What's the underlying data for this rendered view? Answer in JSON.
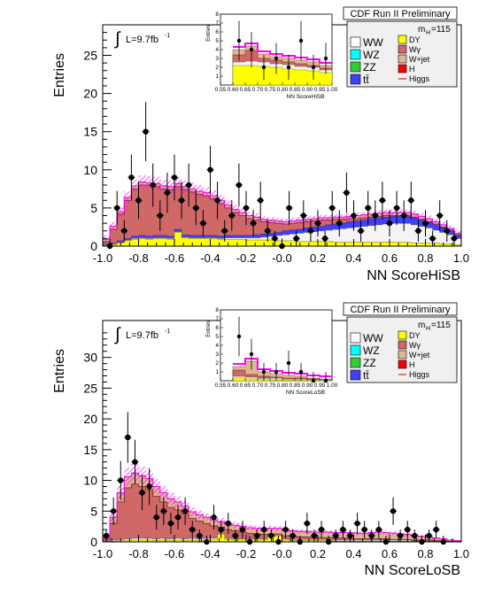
{
  "chart_data": [
    {
      "type": "bar",
      "header": "CDF Run II Preliminary",
      "luminosity_text": "L=9.7fb",
      "luminosity_sup": "-1",
      "mass_label": "m",
      "mass_sub": "H",
      "mass_value": "=115",
      "ylabel": "Entries",
      "xlabel": "NN ScoreHiSB",
      "xlim": [
        -1.0,
        1.0
      ],
      "ylim": [
        0,
        29
      ],
      "x_ticks": [
        "-1.0",
        "-0.8",
        "-0.6",
        "-0.4",
        "-0.2",
        "-0.0",
        "0.2",
        "0.4",
        "0.6",
        "0.8",
        "1.0"
      ],
      "y_ticks": [
        0,
        5,
        10,
        15,
        20,
        25
      ],
      "stack_bins": [
        -1.0,
        -0.96,
        -0.92,
        -0.88,
        -0.84,
        -0.8,
        -0.76,
        -0.72,
        -0.68,
        -0.64,
        -0.6,
        -0.56,
        -0.52,
        -0.48,
        -0.44,
        -0.4,
        -0.36,
        -0.32,
        -0.28,
        -0.24,
        -0.2,
        -0.16,
        -0.12,
        -0.08,
        -0.04,
        0.0,
        0.04,
        0.08,
        0.12,
        0.16,
        0.2,
        0.24,
        0.28,
        0.32,
        0.36,
        0.4,
        0.44,
        0.48,
        0.52,
        0.56,
        0.6,
        0.64,
        0.68,
        0.72,
        0.76,
        0.8,
        0.84,
        0.88,
        0.92,
        0.96,
        1.0
      ],
      "stack": {
        "yellow": [
          0.1,
          0.2,
          0.4,
          0.7,
          0.9,
          1.0,
          0.9,
          1.0,
          1.0,
          0.9,
          1.8,
          1.1,
          1.0,
          1.0,
          1.0,
          1.0,
          0.9,
          0.9,
          0.9,
          0.9,
          0.8,
          0.8,
          0.8,
          0.8,
          0.7,
          0.7,
          0.7,
          0.6,
          0.6,
          0.6,
          0.6,
          0.6,
          0.5,
          0.5,
          0.5,
          0.5,
          0.5,
          0.5,
          0.5,
          0.5,
          0.5,
          0.5,
          0.5,
          0.4,
          0.4,
          0.4,
          0.4,
          0.3,
          0.3,
          0.2
        ],
        "ww_top": [
          0.2,
          0.3,
          0.5,
          0.8,
          1.0,
          1.1,
          1.0,
          1.1,
          1.1,
          1.0,
          1.9,
          1.2,
          1.1,
          1.1,
          1.1,
          1.1,
          1.0,
          1.1,
          1.1,
          1.1,
          1.1,
          1.1,
          1.2,
          1.3,
          1.4,
          1.5,
          1.6,
          1.7,
          1.8,
          1.9,
          2.0,
          2.1,
          2.2,
          2.3,
          2.4,
          2.5,
          2.6,
          2.7,
          2.8,
          2.9,
          3.0,
          3.0,
          3.0,
          2.8,
          2.6,
          2.4,
          2.1,
          1.8,
          1.5,
          1.0
        ],
        "other_top": [
          0.3,
          0.4,
          0.7,
          1.0,
          1.3,
          1.4,
          1.3,
          1.4,
          1.4,
          1.3,
          2.2,
          1.5,
          1.4,
          1.4,
          1.4,
          1.4,
          1.3,
          1.4,
          1.4,
          1.4,
          1.4,
          1.5,
          1.6,
          1.7,
          1.8,
          2.0,
          2.1,
          2.2,
          2.4,
          2.5,
          2.6,
          2.8,
          2.9,
          3.0,
          3.2,
          3.3,
          3.4,
          3.6,
          3.7,
          3.8,
          3.9,
          3.9,
          3.9,
          3.7,
          3.4,
          3.1,
          2.8,
          2.4,
          2.0,
          1.4
        ],
        "wgamma_top": [
          0.6,
          2.2,
          4.2,
          6.0,
          7.5,
          8.0,
          8.0,
          7.8,
          7.5,
          7.4,
          7.8,
          7.4,
          7.1,
          6.8,
          6.6,
          6.2,
          5.6,
          5.0,
          4.4,
          4.0,
          3.6,
          3.4,
          3.2,
          3.1,
          3.0,
          2.9,
          3.0,
          3.1,
          3.2,
          3.3,
          3.4,
          3.4,
          3.5,
          3.5,
          3.6,
          3.6,
          3.7,
          3.8,
          3.9,
          4.0,
          4.0,
          4.0,
          4.0,
          3.8,
          3.5,
          3.2,
          2.9,
          2.5,
          2.1,
          1.5
        ],
        "wjet_top": [
          0.9,
          2.6,
          4.5,
          6.4,
          7.9,
          8.4,
          8.3,
          8.2,
          7.9,
          7.8,
          8.2,
          7.8,
          7.5,
          7.2,
          7.0,
          6.6,
          6.0,
          5.4,
          4.8,
          4.4,
          4.0,
          3.8,
          3.5,
          3.4,
          3.3,
          3.2,
          3.3,
          3.4,
          3.5,
          3.6,
          3.7,
          3.7,
          3.8,
          3.8,
          3.9,
          4.0,
          4.1,
          4.2,
          4.3,
          4.4,
          4.4,
          4.4,
          4.4,
          4.2,
          3.9,
          3.6,
          3.2,
          2.8,
          2.3,
          1.7
        ],
        "band": [
          0.5,
          0.6,
          0.7,
          0.8,
          0.8,
          0.9,
          0.9,
          0.9,
          0.8,
          0.8,
          0.9,
          0.8,
          0.8,
          0.8,
          0.7,
          0.7,
          0.7,
          0.6,
          0.6,
          0.5,
          0.5,
          0.5,
          0.4,
          0.4,
          0.4,
          0.4,
          0.4,
          0.4,
          0.4,
          0.4,
          0.4,
          0.4,
          0.4,
          0.4,
          0.4,
          0.4,
          0.4,
          0.4,
          0.4,
          0.4,
          0.4,
          0.4,
          0.4,
          0.4,
          0.4,
          0.4,
          0.4,
          0.4,
          0.4,
          0.3
        ]
      },
      "points": {
        "x": [
          -0.96,
          -0.92,
          -0.88,
          -0.84,
          -0.8,
          -0.76,
          -0.72,
          -0.68,
          -0.64,
          -0.6,
          -0.56,
          -0.52,
          -0.48,
          -0.44,
          -0.4,
          -0.36,
          -0.32,
          -0.28,
          -0.24,
          -0.2,
          -0.16,
          -0.12,
          -0.08,
          -0.04,
          0.0,
          0.04,
          0.08,
          0.12,
          0.16,
          0.2,
          0.24,
          0.28,
          0.32,
          0.36,
          0.4,
          0.44,
          0.48,
          0.52,
          0.56,
          0.6,
          0.64,
          0.68,
          0.72,
          0.76,
          0.8,
          0.84,
          0.88,
          0.92,
          0.96
        ],
        "y": [
          0,
          5,
          2,
          9,
          6,
          15,
          8,
          4,
          7,
          9,
          6,
          8,
          5,
          3,
          10,
          6,
          2,
          4,
          8,
          5,
          3,
          6,
          2,
          1,
          0,
          5,
          1,
          4,
          2,
          3,
          1,
          5,
          3,
          7,
          4,
          2,
          5,
          4,
          6,
          3,
          5,
          4,
          6,
          2,
          3,
          1,
          4,
          2,
          1
        ]
      },
      "inset": {
        "ylabel": "Entries",
        "xlabel": "NN ScoreHiSB",
        "xlim": [
          0.55,
          1.0
        ],
        "ylim": [
          0,
          8
        ],
        "x_ticks": [
          "0.55",
          "0.60",
          "0.65",
          "0.70",
          "0.75",
          "0.80",
          "0.85",
          "0.90",
          "0.95",
          "1.00"
        ],
        "y_ticks": [
          "1",
          "2",
          "3",
          "4",
          "5",
          "6",
          "7",
          "8"
        ],
        "bins": [
          0.6,
          0.65,
          0.7,
          0.75,
          0.8,
          0.85,
          0.9,
          0.95,
          1.0
        ],
        "yellow": [
          2.2,
          2.2,
          2.1,
          2.0,
          1.8,
          1.7,
          1.6,
          1.4
        ],
        "ww_top": [
          2.6,
          2.7,
          2.6,
          2.4,
          2.3,
          2.1,
          2.0,
          1.7
        ],
        "wgamma_top": [
          3.4,
          3.9,
          3.0,
          2.8,
          2.6,
          2.4,
          2.2,
          1.9
        ],
        "wjet_top": [
          4.0,
          4.4,
          3.5,
          3.2,
          3.0,
          2.8,
          2.6,
          2.2
        ],
        "pts_x": [
          0.625,
          0.675,
          0.725,
          0.775,
          0.825,
          0.875,
          0.925,
          0.975
        ],
        "pts_y": [
          5,
          4,
          2,
          3,
          2,
          5,
          2,
          3
        ]
      },
      "legend": [
        {
          "label": "WW",
          "color": "#ffffff"
        },
        {
          "label": "WZ",
          "color": "#00ffff"
        },
        {
          "label": "ZZ",
          "color": "#33cc33"
        },
        {
          "label": "tt̄",
          "color": "#4040ff"
        },
        {
          "label": "DY",
          "color": "#ffff00"
        },
        {
          "label": "Wγ",
          "color": "#d06868"
        },
        {
          "label": "W+jet",
          "color": "#e0b890"
        },
        {
          "label": "H",
          "color": "#ff0000"
        },
        {
          "label": "Higgs",
          "color": "#cc0000"
        }
      ]
    },
    {
      "type": "bar",
      "header": "CDF Run II Preliminary",
      "luminosity_text": "L=9.7fb",
      "luminosity_sup": "-1",
      "mass_label": "m",
      "mass_sub": "H",
      "mass_value": "=115",
      "ylabel": "Entries",
      "xlabel": "NN ScoreLoSB",
      "xlim": [
        -1.0,
        1.0
      ],
      "ylim": [
        0,
        36
      ],
      "x_ticks": [
        "-1.0",
        "-0.8",
        "-0.6",
        "-0.4",
        "-0.2",
        "-0.0",
        "0.2",
        "0.4",
        "0.6",
        "0.8",
        "1.0"
      ],
      "y_ticks": [
        0,
        5,
        10,
        15,
        20,
        25,
        30
      ],
      "stack_bins": [
        -1.0,
        -0.96,
        -0.92,
        -0.88,
        -0.84,
        -0.8,
        -0.76,
        -0.72,
        -0.68,
        -0.64,
        -0.6,
        -0.56,
        -0.52,
        -0.48,
        -0.44,
        -0.4,
        -0.36,
        -0.32,
        -0.28,
        -0.24,
        -0.2,
        -0.16,
        -0.12,
        -0.08,
        -0.04,
        0.0,
        0.04,
        0.08,
        0.12,
        0.16,
        0.2,
        0.24,
        0.28,
        0.32,
        0.36,
        0.4,
        0.44,
        0.48,
        0.52,
        0.56,
        0.6,
        0.64,
        0.68,
        0.72,
        0.76,
        0.8,
        0.84,
        0.88,
        0.92,
        0.96,
        1.0
      ],
      "stack": {
        "yellow": [
          0.1,
          0.1,
          0.2,
          0.2,
          0.3,
          0.3,
          0.3,
          0.2,
          0.3,
          0.2,
          0.3,
          0.2,
          0.3,
          0.2,
          0.3,
          0.3,
          1.2,
          0.4,
          0.3,
          0.3,
          0.3,
          0.3,
          0.3,
          0.8,
          0.9,
          0.3,
          0.2,
          0.2,
          0.2,
          0.2,
          0.2,
          0.2,
          0.1,
          0.1,
          0.1,
          0.1,
          0.1,
          0.1,
          0.1,
          0.1,
          0.1,
          0.1,
          0.1,
          0.1,
          0.1,
          0.1,
          0.0,
          0.0,
          0.0,
          0.0
        ],
        "ww_top": [
          0.2,
          0.3,
          0.4,
          0.5,
          0.6,
          0.6,
          0.6,
          0.5,
          0.6,
          0.5,
          0.6,
          0.5,
          0.6,
          0.5,
          0.6,
          0.6,
          1.4,
          0.6,
          0.5,
          0.5,
          0.5,
          0.5,
          0.5,
          1.0,
          1.1,
          0.5,
          0.4,
          0.4,
          0.4,
          0.4,
          0.4,
          0.4,
          0.3,
          0.3,
          0.3,
          0.3,
          0.3,
          0.3,
          0.3,
          0.3,
          0.3,
          0.3,
          0.3,
          0.2,
          0.2,
          0.2,
          0.1,
          0.1,
          0.1,
          0.1
        ],
        "wgamma_top": [
          0.5,
          3.0,
          6.5,
          8.8,
          9.4,
          9.0,
          8.5,
          7.4,
          6.5,
          5.6,
          5.2,
          4.6,
          3.8,
          3.4,
          3.0,
          2.6,
          2.4,
          2.0,
          1.8,
          1.6,
          1.4,
          1.3,
          1.2,
          1.3,
          1.3,
          1.0,
          0.9,
          0.8,
          0.8,
          0.7,
          0.7,
          0.7,
          0.6,
          0.6,
          0.6,
          0.5,
          0.5,
          0.5,
          0.5,
          0.5,
          0.4,
          0.4,
          0.4,
          0.3,
          0.3,
          0.3,
          0.2,
          0.2,
          0.1,
          0.1
        ],
        "wjet_top": [
          0.8,
          4.0,
          8.0,
          10.6,
          11.2,
          10.8,
          10.3,
          9.0,
          8.0,
          7.0,
          6.5,
          5.8,
          4.9,
          4.4,
          4.0,
          3.6,
          3.3,
          2.9,
          2.7,
          2.5,
          2.3,
          2.2,
          2.1,
          2.2,
          2.2,
          1.9,
          1.8,
          1.7,
          1.7,
          1.6,
          1.6,
          1.6,
          1.5,
          1.5,
          1.5,
          1.4,
          1.4,
          1.5,
          1.6,
          1.5,
          1.4,
          1.3,
          1.2,
          1.0,
          0.9,
          0.8,
          0.6,
          0.5,
          0.3,
          0.2
        ],
        "band": [
          0.6,
          1.0,
          1.3,
          1.5,
          1.5,
          1.4,
          1.3,
          1.2,
          1.1,
          1.0,
          0.9,
          0.8,
          0.7,
          0.7,
          0.6,
          0.6,
          0.6,
          0.5,
          0.5,
          0.5,
          0.4,
          0.4,
          0.4,
          0.4,
          0.4,
          0.4,
          0.3,
          0.3,
          0.3,
          0.3,
          0.3,
          0.3,
          0.3,
          0.3,
          0.3,
          0.3,
          0.3,
          0.3,
          0.3,
          0.3,
          0.3,
          0.3,
          0.3,
          0.2,
          0.2,
          0.2,
          0.2,
          0.2,
          0.1,
          0.1
        ]
      },
      "points": {
        "x": [
          -0.98,
          -0.94,
          -0.9,
          -0.86,
          -0.82,
          -0.78,
          -0.74,
          -0.7,
          -0.66,
          -0.62,
          -0.58,
          -0.54,
          -0.5,
          -0.46,
          -0.42,
          -0.38,
          -0.34,
          -0.3,
          -0.26,
          -0.22,
          -0.18,
          -0.14,
          -0.1,
          -0.06,
          -0.02,
          0.02,
          0.06,
          0.1,
          0.14,
          0.18,
          0.22,
          0.26,
          0.3,
          0.34,
          0.38,
          0.42,
          0.46,
          0.5,
          0.54,
          0.58,
          0.62,
          0.66,
          0.7,
          0.74,
          0.78,
          0.82,
          0.86,
          0.9
        ],
        "y": [
          1,
          5,
          10,
          17,
          13,
          8,
          9,
          4,
          5,
          3,
          4,
          5,
          2,
          1,
          0,
          4,
          2,
          3,
          1,
          2,
          0,
          1,
          2,
          1,
          0,
          2,
          1,
          0,
          3,
          1,
          2,
          0,
          1,
          2,
          1,
          3,
          2,
          1,
          2,
          0,
          5,
          1,
          2,
          1,
          0,
          1,
          2,
          0
        ]
      },
      "inset": {
        "ylabel": "Entries",
        "xlabel": "NN ScoreLoSB",
        "xlim": [
          0.55,
          1.0
        ],
        "ylim": [
          0,
          8
        ],
        "x_ticks": [
          "0.55",
          "0.60",
          "0.65",
          "0.70",
          "0.75",
          "0.80",
          "0.85",
          "0.90",
          "0.95",
          "1.00"
        ],
        "y_ticks": [
          "1",
          "2",
          "3",
          "4",
          "5",
          "6",
          "7",
          "8"
        ],
        "bins": [
          0.6,
          0.65,
          0.7,
          0.75,
          0.8,
          0.85,
          0.9,
          0.95,
          1.0
        ],
        "yellow": [
          0.3,
          0.2,
          0.2,
          0.1,
          0.1,
          0.1,
          0.1,
          0.0
        ],
        "ww_top": [
          0.5,
          0.4,
          0.3,
          0.3,
          0.2,
          0.2,
          0.1,
          0.1
        ],
        "wgamma_top": [
          1.2,
          0.7,
          0.5,
          0.4,
          0.3,
          0.3,
          0.2,
          0.1
        ],
        "wjet_top": [
          1.6,
          2.2,
          1.0,
          0.8,
          0.6,
          0.5,
          0.3,
          0.2
        ],
        "pts_x": [
          0.625,
          0.675,
          0.725,
          0.775,
          0.825,
          0.875,
          0.925,
          0.975
        ],
        "pts_y": [
          5,
          3,
          1,
          1,
          2,
          1,
          0,
          0
        ]
      },
      "legend": [
        {
          "label": "WW",
          "color": "#ffffff"
        },
        {
          "label": "WZ",
          "color": "#00ffff"
        },
        {
          "label": "ZZ",
          "color": "#33cc33"
        },
        {
          "label": "tt̄",
          "color": "#4040ff"
        },
        {
          "label": "DY",
          "color": "#ffff00"
        },
        {
          "label": "Wγ",
          "color": "#d06868"
        },
        {
          "label": "W+jet",
          "color": "#e0b890"
        },
        {
          "label": "H",
          "color": "#ff0000"
        },
        {
          "label": "Higgs",
          "color": "#cc0000"
        }
      ]
    }
  ]
}
